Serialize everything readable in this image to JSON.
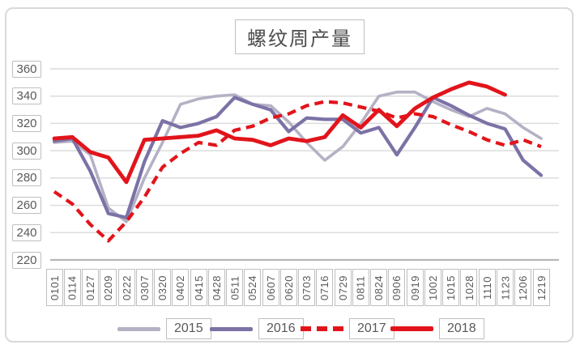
{
  "chart_data": {
    "type": "line",
    "title": "螺纹周产量",
    "categories": [
      "0101",
      "0114",
      "0127",
      "0209",
      "0222",
      "0307",
      "0320",
      "0402",
      "0415",
      "0428",
      "0511",
      "0524",
      "0607",
      "0620",
      "0703",
      "0716",
      "0729",
      "0811",
      "0824",
      "0906",
      "0919",
      "1002",
      "1015",
      "1028",
      "1110",
      "1123",
      "1206",
      "1219"
    ],
    "series": [
      {
        "name": "2015",
        "color": "#b5b1c5",
        "dash": "solid",
        "width": 3.6,
        "values": [
          306,
          307,
          297,
          258,
          248,
          280,
          306,
          334,
          338,
          340,
          341,
          334,
          333,
          321,
          306,
          293,
          303,
          320,
          340,
          343,
          343,
          336,
          330,
          325,
          331,
          327,
          317,
          309
        ]
      },
      {
        "name": "2016",
        "color": "#7d72a6",
        "dash": "solid",
        "width": 4.2,
        "values": [
          307,
          309,
          285,
          254,
          251,
          292,
          322,
          317,
          320,
          325,
          339,
          334,
          330,
          314,
          324,
          323,
          323,
          313,
          317,
          297,
          317,
          339,
          333,
          326,
          320,
          316,
          293,
          282
        ]
      },
      {
        "name": "2017",
        "color": "#e2141b",
        "dash": "dashed",
        "width": 4.2,
        "values": [
          270,
          261,
          246,
          234,
          248,
          266,
          288,
          298,
          306,
          304,
          315,
          318,
          324,
          327,
          333,
          336,
          335,
          332,
          329,
          324,
          327,
          325,
          319,
          314,
          308,
          304,
          308,
          303
        ]
      },
      {
        "name": "2018",
        "color": "#e2141b",
        "dash": "solid",
        "width": 4.8,
        "values": [
          309,
          310,
          299,
          295,
          277,
          308,
          309,
          310,
          311,
          315,
          309,
          308,
          304,
          309,
          307,
          310,
          326,
          317,
          330,
          318,
          331,
          339,
          345,
          350,
          347,
          341,
          null,
          null
        ]
      }
    ],
    "yticks": [
      360,
      340,
      320,
      300,
      280,
      260,
      240,
      220
    ],
    "ylim": [
      220,
      360
    ],
    "grid": true,
    "legend_position": "bottom",
    "colors": {
      "grid": "#dcdcdc",
      "axis": "#b7b7b7",
      "tick_text": "#595959",
      "box_border": "#bfbfbf",
      "frame": "#d9d9d9"
    }
  }
}
